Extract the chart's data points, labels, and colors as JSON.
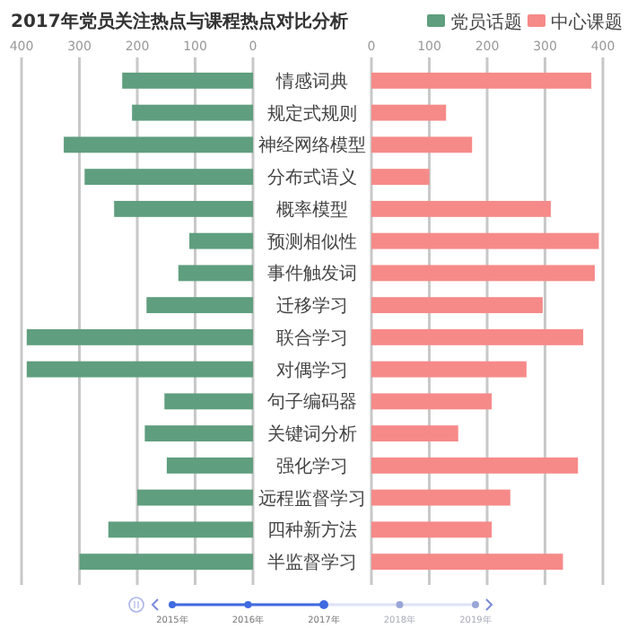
{
  "chart_data": [
    {
      "type": "bar",
      "orientation": "horizontal",
      "title": "2017年党员关注热点与课程热点对比分析",
      "categories": [
        "情感词典",
        "规定式规则",
        "神经网络模型",
        "分布式语义",
        "概率模型",
        "预测相似性",
        "事件触发词",
        "迁移学习",
        "联合学习",
        "对偶学习",
        "句子编码器",
        "关键词分析",
        "强化学习",
        "远程监督学习",
        "四种新方法",
        "半监督学习"
      ],
      "series": [
        {
          "name": "党员话题",
          "color": "#5f9e7e",
          "values": [
            226,
            209,
            327,
            291,
            240,
            110,
            129,
            184,
            391,
            391,
            153,
            187,
            149,
            200,
            250,
            300
          ]
        }
      ],
      "xlim": [
        400,
        0
      ],
      "xticks": [
        400,
        300,
        200,
        100,
        0
      ],
      "grid": "x",
      "legend": "top right",
      "annotations": [
        "2015年",
        "2016年",
        "2017年",
        "2018年",
        "2019年"
      ]
    },
    {
      "type": "bar",
      "orientation": "horizontal",
      "series": [
        {
          "name": "中心课题",
          "color": "#f68a88",
          "values": [
            380,
            129,
            174,
            100,
            310,
            393,
            386,
            296,
            366,
            268,
            208,
            150,
            357,
            240,
            208,
            331
          ]
        }
      ],
      "xlim": [
        0,
        400
      ],
      "xticks": [
        0,
        100,
        200,
        300,
        400
      ],
      "grid": "x",
      "legend": "top right",
      "tick_labels": "x"
    }
  ]
}
